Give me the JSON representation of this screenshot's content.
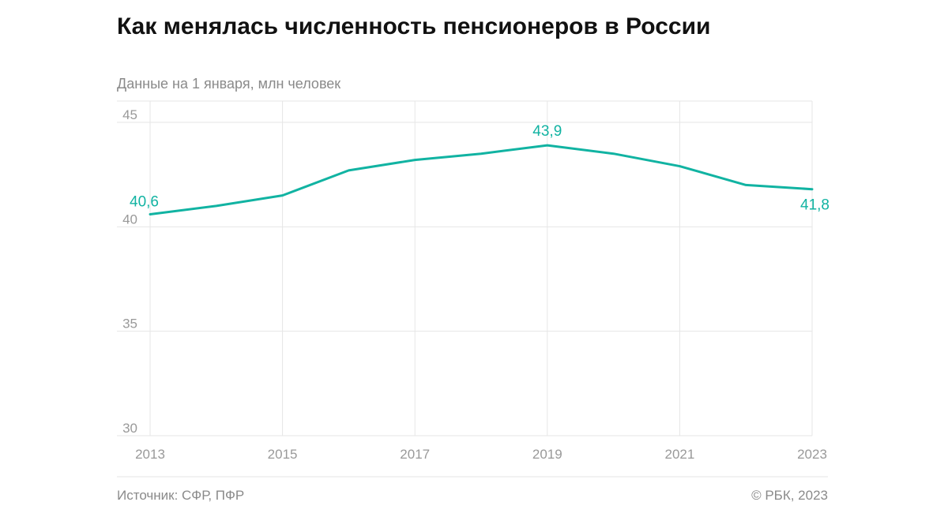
{
  "title": "Как менялась численность пенсионеров в России",
  "subtitle": "Данные на 1 января, млн человек",
  "source": "Источник: СФР, ПФР",
  "copyright": "© РБК, 2023",
  "colors": {
    "line": "#11b3a2",
    "grid": "#e6e6e6",
    "axis_text": "#999999"
  },
  "chart_data": {
    "type": "line",
    "x": [
      2013,
      2014,
      2015,
      2016,
      2017,
      2018,
      2019,
      2020,
      2021,
      2022,
      2023
    ],
    "series": [
      {
        "values": [
          40.6,
          41.0,
          41.5,
          42.7,
          43.2,
          43.5,
          43.9,
          43.5,
          42.9,
          42.0,
          41.8
        ]
      }
    ],
    "x_ticks": [
      "2013",
      "2015",
      "2017",
      "2019",
      "2021",
      "2023"
    ],
    "y_ticks": [
      "30",
      "35",
      "40",
      "45"
    ],
    "ylim": [
      30,
      45
    ],
    "xlim": [
      2013,
      2023
    ],
    "data_labels": [
      {
        "x": 2013,
        "text": "40,6"
      },
      {
        "x": 2019,
        "text": "43,9"
      },
      {
        "x": 2023,
        "text": "41,8"
      }
    ],
    "grid": true
  }
}
